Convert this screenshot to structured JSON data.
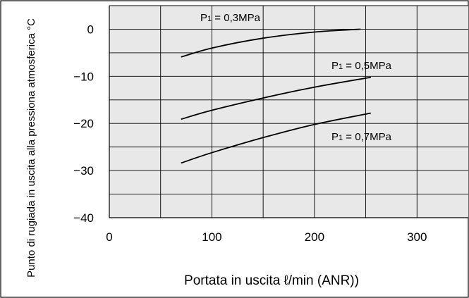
{
  "chart_data": {
    "type": "line",
    "xlabel": "Portata in uscita ℓ/min (ANR))",
    "ylabel": "Punto di rugiada in uscita alla pressiona atmosferica °C",
    "xlim": [
      0,
      350
    ],
    "ylim": [
      -40,
      5
    ],
    "x_ticks": [
      0,
      100,
      200,
      300
    ],
    "y_ticks": [
      0,
      -10,
      -20,
      -30,
      -40
    ],
    "x_tick_labels": [
      "0",
      "100",
      "200",
      "300"
    ],
    "y_tick_labels": [
      "0",
      "−10",
      "−20",
      "−30",
      "−40"
    ],
    "grid": true,
    "grid_x_step": 50,
    "grid_y_step": 5,
    "plot_background": "#e8e8e8",
    "line_color": "#000000",
    "series": [
      {
        "name": "P1 = 0,3MPa",
        "name_parts": [
          "P",
          "1",
          " = 0,3MPa"
        ],
        "x": [
          70,
          100,
          150,
          200,
          245
        ],
        "y": [
          -5.9,
          -4.0,
          -1.9,
          -0.6,
          0.0
        ]
      },
      {
        "name": "P1 = 0,5MPa",
        "name_parts": [
          "P",
          "1",
          " = 0,5MPa"
        ],
        "x": [
          70,
          100,
          150,
          200,
          255
        ],
        "y": [
          -19.1,
          -17.2,
          -14.6,
          -12.3,
          -10.2
        ]
      },
      {
        "name": "P1 = 0,7MPa",
        "name_parts": [
          "P",
          "1",
          " = 0,7MPa"
        ],
        "x": [
          70,
          100,
          150,
          200,
          255
        ],
        "y": [
          -28.4,
          -26.2,
          -23.0,
          -20.2,
          -17.8
        ]
      }
    ]
  }
}
